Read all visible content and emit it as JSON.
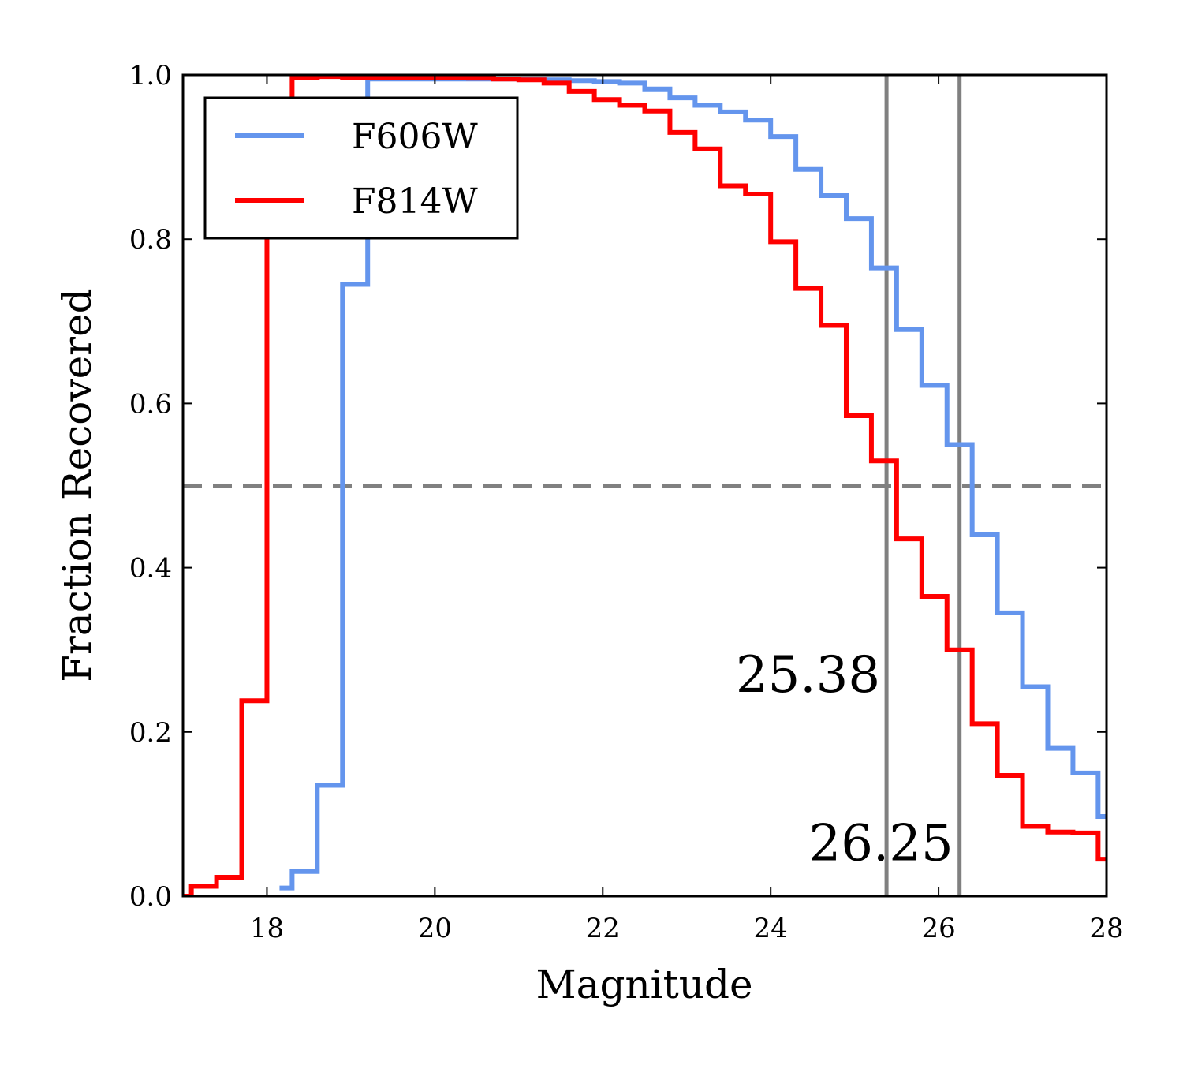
{
  "chart_data": {
    "type": "line",
    "step": true,
    "xlabel": "Magnitude",
    "ylabel": "Fraction Recovered",
    "xlim": [
      17,
      28
    ],
    "ylim": [
      0.0,
      1.0
    ],
    "xticks": [
      18,
      20,
      22,
      24,
      26,
      28
    ],
    "xtick_labels": [
      "18",
      "20",
      "22",
      "24",
      "26",
      "28"
    ],
    "yticks": [
      0.0,
      0.2,
      0.4,
      0.6,
      0.8,
      1.0
    ],
    "ytick_labels": [
      "0.0",
      "0.2",
      "0.4",
      "0.6",
      "0.8",
      "1.0"
    ],
    "grid": false,
    "legend_position": "top-left",
    "series": [
      {
        "name": "F606W",
        "color": "#6495ed",
        "x": [
          18.15,
          18.3,
          18.6,
          18.9,
          19.2,
          19.5,
          19.8,
          20.1,
          20.4,
          20.7,
          21.0,
          21.3,
          21.6,
          21.9,
          22.2,
          22.5,
          22.8,
          23.1,
          23.4,
          23.7,
          24.0,
          24.3,
          24.6,
          24.9,
          25.2,
          25.5,
          25.8,
          26.1,
          26.4,
          26.7,
          27.0,
          27.3,
          27.6,
          27.9,
          28.0
        ],
        "y": [
          0.01,
          0.03,
          0.135,
          0.745,
          0.995,
          0.995,
          0.995,
          0.995,
          0.995,
          0.995,
          0.995,
          0.994,
          0.993,
          0.992,
          0.99,
          0.983,
          0.972,
          0.963,
          0.955,
          0.945,
          0.925,
          0.885,
          0.853,
          0.825,
          0.765,
          0.69,
          0.622,
          0.55,
          0.44,
          0.345,
          0.255,
          0.18,
          0.15,
          0.097,
          0.097
        ]
      },
      {
        "name": "F814W",
        "color": "#ff0000",
        "x": [
          17.0,
          17.1,
          17.4,
          17.7,
          18.0,
          18.3,
          18.6,
          18.9,
          19.2,
          19.5,
          19.8,
          20.1,
          20.4,
          20.7,
          21.0,
          21.3,
          21.6,
          21.9,
          22.2,
          22.5,
          22.8,
          23.1,
          23.4,
          23.7,
          24.0,
          24.3,
          24.6,
          24.9,
          25.2,
          25.5,
          25.8,
          26.1,
          26.4,
          26.7,
          27.0,
          27.3,
          27.6,
          27.9,
          28.0
        ],
        "y": [
          0.0,
          0.012,
          0.023,
          0.238,
          0.82,
          0.997,
          0.998,
          0.997,
          0.997,
          0.997,
          0.997,
          0.997,
          0.996,
          0.995,
          0.994,
          0.99,
          0.98,
          0.97,
          0.963,
          0.956,
          0.93,
          0.91,
          0.865,
          0.855,
          0.797,
          0.74,
          0.695,
          0.585,
          0.53,
          0.435,
          0.365,
          0.3,
          0.21,
          0.147,
          0.085,
          0.078,
          0.077,
          0.045,
          0.045
        ]
      }
    ],
    "reference_lines": [
      {
        "orientation": "horizontal",
        "value": 0.5,
        "style": "dashed",
        "color": "#808080"
      },
      {
        "orientation": "vertical",
        "value": 25.38,
        "style": "solid",
        "color": "#808080"
      },
      {
        "orientation": "vertical",
        "value": 26.25,
        "style": "solid",
        "color": "#808080"
      }
    ],
    "annotations": [
      {
        "text": "25.38",
        "x": 25.38,
        "y": 0.27
      },
      {
        "text": "26.25",
        "x": 26.25,
        "y": 0.065
      }
    ]
  }
}
